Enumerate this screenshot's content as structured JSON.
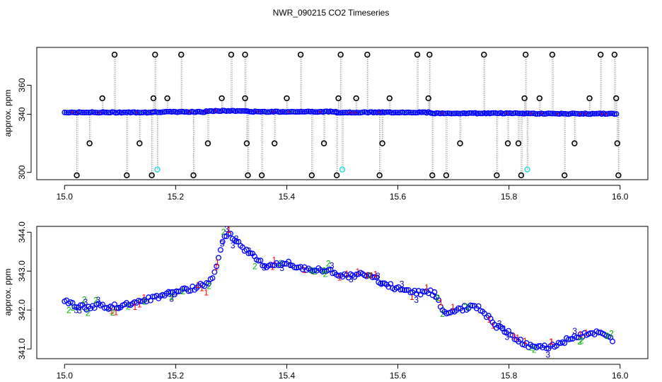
{
  "figure_title": "NWR_090215  CO2 Timeseries",
  "chart_data": [
    {
      "type": "scatter",
      "title": "",
      "xlabel": "",
      "ylabel": "approx. ppm",
      "xlim": [
        14.95,
        16.05
      ],
      "ylim": [
        295,
        386
      ],
      "grid": false,
      "x_ticks": [
        "15.0",
        "15.2",
        "15.4",
        "15.6",
        "15.8",
        "16.0"
      ],
      "x_tick_values": [
        15.0,
        15.2,
        15.4,
        15.6,
        15.8,
        16.0
      ],
      "y_ticks": [
        "300",
        "340",
        "360"
      ],
      "y_tick_values": [
        300,
        340,
        360
      ],
      "marker_colors": {
        "baseline": "#0000ff",
        "baseline_fill": "#2aa0a0",
        "outlier": "#000000",
        "flag": "#ff0000",
        "cyan": "#33dddd",
        "line": "#999999"
      },
      "baseline_segments": [
        {
          "x0": 15.0,
          "x1": 15.16,
          "y": 341.3
        },
        {
          "x0": 15.16,
          "x1": 15.255,
          "y": 341.6
        },
        {
          "x0": 15.255,
          "x1": 15.33,
          "y": 342.3
        },
        {
          "x0": 15.33,
          "x1": 15.49,
          "y": 341.8
        },
        {
          "x0": 15.49,
          "x1": 15.66,
          "y": 341.3
        },
        {
          "x0": 15.66,
          "x1": 15.825,
          "y": 340.7
        },
        {
          "x0": 15.825,
          "x1": 15.995,
          "y": 340.4
        }
      ],
      "outliers_high": [
        {
          "x": 15.09,
          "y": 381
        },
        {
          "x": 15.163,
          "y": 381
        },
        {
          "x": 15.21,
          "y": 381
        },
        {
          "x": 15.3,
          "y": 381
        },
        {
          "x": 15.325,
          "y": 381
        },
        {
          "x": 15.425,
          "y": 381
        },
        {
          "x": 15.497,
          "y": 381
        },
        {
          "x": 15.545,
          "y": 381
        },
        {
          "x": 15.635,
          "y": 381
        },
        {
          "x": 15.657,
          "y": 381
        },
        {
          "x": 15.755,
          "y": 381
        },
        {
          "x": 15.83,
          "y": 381
        },
        {
          "x": 15.878,
          "y": 381
        },
        {
          "x": 15.965,
          "y": 381
        },
        {
          "x": 15.99,
          "y": 381
        }
      ],
      "outliers_mid": [
        {
          "x": 15.068,
          "y": 351
        },
        {
          "x": 15.16,
          "y": 351
        },
        {
          "x": 15.185,
          "y": 351
        },
        {
          "x": 15.283,
          "y": 351
        },
        {
          "x": 15.325,
          "y": 351
        },
        {
          "x": 15.4,
          "y": 351
        },
        {
          "x": 15.493,
          "y": 351
        },
        {
          "x": 15.525,
          "y": 351
        },
        {
          "x": 15.585,
          "y": 351
        },
        {
          "x": 15.655,
          "y": 351
        },
        {
          "x": 15.828,
          "y": 351
        },
        {
          "x": 15.855,
          "y": 351
        },
        {
          "x": 15.945,
          "y": 351
        },
        {
          "x": 15.993,
          "y": 351
        }
      ],
      "outliers_low1": [
        {
          "x": 15.045,
          "y": 320
        },
        {
          "x": 15.135,
          "y": 320
        },
        {
          "x": 15.258,
          "y": 320
        },
        {
          "x": 15.328,
          "y": 320
        },
        {
          "x": 15.378,
          "y": 320
        },
        {
          "x": 15.467,
          "y": 320
        },
        {
          "x": 15.572,
          "y": 320
        },
        {
          "x": 15.712,
          "y": 320
        },
        {
          "x": 15.798,
          "y": 320
        },
        {
          "x": 15.817,
          "y": 320
        },
        {
          "x": 15.918,
          "y": 320
        },
        {
          "x": 15.995,
          "y": 320
        }
      ],
      "outliers_low2": [
        {
          "x": 15.022,
          "y": 298
        },
        {
          "x": 15.112,
          "y": 298
        },
        {
          "x": 15.157,
          "y": 298
        },
        {
          "x": 15.232,
          "y": 298
        },
        {
          "x": 15.33,
          "y": 298
        },
        {
          "x": 15.355,
          "y": 298
        },
        {
          "x": 15.445,
          "y": 298
        },
        {
          "x": 15.49,
          "y": 298
        },
        {
          "x": 15.567,
          "y": 298
        },
        {
          "x": 15.662,
          "y": 298
        },
        {
          "x": 15.687,
          "y": 298
        },
        {
          "x": 15.778,
          "y": 298
        },
        {
          "x": 15.822,
          "y": 298
        },
        {
          "x": 15.9,
          "y": 298
        },
        {
          "x": 15.997,
          "y": 298
        }
      ],
      "flagged_points": [
        {
          "x": 15.167,
          "y": 302
        },
        {
          "x": 15.5,
          "y": 302
        },
        {
          "x": 15.833,
          "y": 302
        }
      ]
    },
    {
      "type": "scatter",
      "title": "",
      "xlabel": "",
      "ylabel": "approx. ppm",
      "xlim": [
        14.95,
        16.05
      ],
      "ylim": [
        340.75,
        344.15
      ],
      "grid": false,
      "x_ticks": [
        "15.0",
        "15.2",
        "15.4",
        "15.6",
        "15.8",
        "16.0"
      ],
      "x_tick_values": [
        15.0,
        15.2,
        15.4,
        15.6,
        15.8,
        16.0
      ],
      "y_ticks": [
        "341.0",
        "342.0",
        "343.0",
        "344.0"
      ],
      "y_tick_values": [
        341.0,
        342.0,
        343.0,
        344.0
      ],
      "marker_colors": {
        "circle": "#0000ff",
        "label_1": "#ff0000",
        "label_2": "#00b000",
        "label_3": "#0000c0"
      },
      "series_labels": [
        "1",
        "2",
        "3"
      ],
      "trend": [
        [
          15.0,
          342.22
        ],
        [
          15.02,
          342.12
        ],
        [
          15.04,
          342.05
        ],
        [
          15.06,
          342.12
        ],
        [
          15.08,
          342.08
        ],
        [
          15.1,
          342.1
        ],
        [
          15.12,
          342.15
        ],
        [
          15.14,
          342.22
        ],
        [
          15.16,
          342.32
        ],
        [
          15.18,
          342.4
        ],
        [
          15.2,
          342.45
        ],
        [
          15.22,
          342.52
        ],
        [
          15.24,
          342.6
        ],
        [
          15.26,
          342.72
        ],
        [
          15.27,
          342.95
        ],
        [
          15.28,
          343.55
        ],
        [
          15.29,
          343.95
        ],
        [
          15.3,
          343.92
        ],
        [
          15.31,
          343.78
        ],
        [
          15.32,
          343.62
        ],
        [
          15.33,
          343.5
        ],
        [
          15.345,
          343.32
        ],
        [
          15.36,
          343.15
        ],
        [
          15.38,
          343.18
        ],
        [
          15.4,
          343.2
        ],
        [
          15.42,
          343.12
        ],
        [
          15.44,
          343.05
        ],
        [
          15.46,
          343.02
        ],
        [
          15.48,
          342.98
        ],
        [
          15.5,
          342.9
        ],
        [
          15.52,
          342.88
        ],
        [
          15.54,
          342.95
        ],
        [
          15.56,
          342.8
        ],
        [
          15.58,
          342.65
        ],
        [
          15.6,
          342.55
        ],
        [
          15.62,
          342.48
        ],
        [
          15.64,
          342.45
        ],
        [
          15.66,
          342.45
        ],
        [
          15.67,
          342.38
        ],
        [
          15.68,
          341.95
        ],
        [
          15.69,
          341.88
        ],
        [
          15.7,
          342.0
        ],
        [
          15.72,
          342.05
        ],
        [
          15.74,
          342.1
        ],
        [
          15.75,
          342.02
        ],
        [
          15.76,
          341.85
        ],
        [
          15.78,
          341.55
        ],
        [
          15.8,
          341.4
        ],
        [
          15.82,
          341.2
        ],
        [
          15.84,
          341.05
        ],
        [
          15.86,
          341.02
        ],
        [
          15.88,
          341.1
        ],
        [
          15.9,
          341.2
        ],
        [
          15.92,
          341.32
        ],
        [
          15.94,
          341.4
        ],
        [
          15.96,
          341.42
        ],
        [
          15.98,
          341.28
        ],
        [
          15.99,
          341.15
        ]
      ]
    }
  ]
}
